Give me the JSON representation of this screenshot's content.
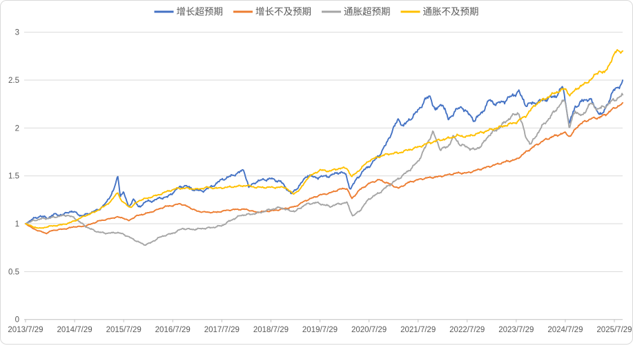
{
  "chart_data": {
    "type": "line",
    "title": "",
    "xlabel": "",
    "ylabel": "",
    "grid": "horizontal",
    "legend_position": "top-center",
    "background": "#FFFFFF",
    "frame_border_color": "#D9D9D9",
    "gridline_color": "#D9D9D9",
    "axis_line_color": "#BFBFBF",
    "tick_text_color": "#595959",
    "y_axis": {
      "min": 0,
      "max": 3,
      "step": 0.5,
      "tick_labels": [
        "0",
        "0.5",
        "1",
        "1.5",
        "2",
        "2.5",
        "3"
      ]
    },
    "x_axis": {
      "tick_labels": [
        "2013/7/29",
        "2014/7/29",
        "2015/7/29",
        "2016/7/29",
        "2017/7/29",
        "2018/7/29",
        "2019/7/29",
        "2020/7/29",
        "2021/7/29",
        "2022/7/29",
        "2023/7/29",
        "2024/7/29",
        "2025/7/29"
      ],
      "tick_positions_years": [
        0,
        1,
        2,
        3,
        4,
        5,
        6,
        7,
        8,
        9,
        10,
        11,
        12
      ],
      "data_span_years": 12.17
    },
    "series": [
      {
        "id": "growth-above-expectations",
        "name": "增长超预期",
        "color": "#4472C4",
        "noise_rel": 0.014,
        "seed": 11,
        "points": [
          [
            0,
            1.0
          ],
          [
            0.15,
            1.05
          ],
          [
            0.3,
            1.08
          ],
          [
            0.45,
            1.06
          ],
          [
            0.6,
            1.1
          ],
          [
            0.75,
            1.09
          ],
          [
            0.9,
            1.13
          ],
          [
            1.0,
            1.12
          ],
          [
            1.15,
            1.08
          ],
          [
            1.3,
            1.11
          ],
          [
            1.5,
            1.15
          ],
          [
            1.65,
            1.22
          ],
          [
            1.8,
            1.36
          ],
          [
            1.88,
            1.49
          ],
          [
            1.93,
            1.3
          ],
          [
            2.0,
            1.33
          ],
          [
            2.1,
            1.17
          ],
          [
            2.2,
            1.26
          ],
          [
            2.3,
            1.17
          ],
          [
            2.45,
            1.23
          ],
          [
            2.6,
            1.24
          ],
          [
            2.75,
            1.27
          ],
          [
            2.9,
            1.28
          ],
          [
            3.1,
            1.37
          ],
          [
            3.25,
            1.4
          ],
          [
            3.4,
            1.36
          ],
          [
            3.6,
            1.34
          ],
          [
            3.8,
            1.39
          ],
          [
            4.0,
            1.46
          ],
          [
            4.2,
            1.5
          ],
          [
            4.45,
            1.56
          ],
          [
            4.55,
            1.38
          ],
          [
            4.7,
            1.44
          ],
          [
            4.85,
            1.46
          ],
          [
            5.0,
            1.47
          ],
          [
            5.2,
            1.44
          ],
          [
            5.42,
            1.31
          ],
          [
            5.6,
            1.41
          ],
          [
            5.75,
            1.51
          ],
          [
            5.9,
            1.48
          ],
          [
            6.0,
            1.49
          ],
          [
            6.2,
            1.5
          ],
          [
            6.4,
            1.54
          ],
          [
            6.52,
            1.52
          ],
          [
            6.62,
            1.36
          ],
          [
            6.75,
            1.47
          ],
          [
            6.9,
            1.56
          ],
          [
            7.0,
            1.6
          ],
          [
            7.2,
            1.71
          ],
          [
            7.35,
            1.83
          ],
          [
            7.5,
            2.0
          ],
          [
            7.6,
            2.09
          ],
          [
            7.7,
            2.02
          ],
          [
            7.85,
            2.1
          ],
          [
            8.0,
            2.18
          ],
          [
            8.15,
            2.3
          ],
          [
            8.25,
            2.33
          ],
          [
            8.35,
            2.18
          ],
          [
            8.5,
            2.26
          ],
          [
            8.62,
            2.08
          ],
          [
            8.75,
            2.18
          ],
          [
            8.9,
            2.22
          ],
          [
            9.0,
            2.16
          ],
          [
            9.15,
            2.08
          ],
          [
            9.3,
            2.16
          ],
          [
            9.45,
            2.29
          ],
          [
            9.6,
            2.25
          ],
          [
            9.75,
            2.28
          ],
          [
            9.9,
            2.33
          ],
          [
            10.05,
            2.38
          ],
          [
            10.2,
            2.24
          ],
          [
            10.35,
            2.26
          ],
          [
            10.5,
            2.28
          ],
          [
            10.65,
            2.31
          ],
          [
            10.8,
            2.33
          ],
          [
            10.95,
            2.43
          ],
          [
            11.08,
            2.04
          ],
          [
            11.2,
            2.22
          ],
          [
            11.35,
            2.28
          ],
          [
            11.5,
            2.31
          ],
          [
            11.62,
            2.2
          ],
          [
            11.75,
            2.13
          ],
          [
            11.9,
            2.3
          ],
          [
            12.0,
            2.4
          ],
          [
            12.17,
            2.47
          ]
        ]
      },
      {
        "id": "growth-below-expectations",
        "name": "增长不及预期",
        "color": "#ED7D31",
        "noise_rel": 0.008,
        "seed": 22,
        "points": [
          [
            0,
            1.0
          ],
          [
            0.15,
            0.95
          ],
          [
            0.3,
            0.92
          ],
          [
            0.42,
            0.9
          ],
          [
            0.55,
            0.93
          ],
          [
            0.7,
            0.94
          ],
          [
            0.85,
            0.95
          ],
          [
            1.0,
            0.97
          ],
          [
            1.15,
            0.97
          ],
          [
            1.3,
            0.99
          ],
          [
            1.5,
            1.03
          ],
          [
            1.7,
            1.05
          ],
          [
            1.85,
            1.07
          ],
          [
            2.0,
            1.06
          ],
          [
            2.1,
            1.03
          ],
          [
            2.25,
            1.08
          ],
          [
            2.4,
            1.1
          ],
          [
            2.55,
            1.12
          ],
          [
            2.7,
            1.15
          ],
          [
            2.85,
            1.18
          ],
          [
            3.0,
            1.19
          ],
          [
            3.15,
            1.21
          ],
          [
            3.3,
            1.18
          ],
          [
            3.5,
            1.13
          ],
          [
            3.7,
            1.12
          ],
          [
            3.9,
            1.12
          ],
          [
            4.1,
            1.14
          ],
          [
            4.3,
            1.15
          ],
          [
            4.5,
            1.15
          ],
          [
            4.7,
            1.12
          ],
          [
            4.9,
            1.13
          ],
          [
            5.1,
            1.14
          ],
          [
            5.3,
            1.16
          ],
          [
            5.5,
            1.18
          ],
          [
            5.7,
            1.24
          ],
          [
            5.9,
            1.28
          ],
          [
            6.0,
            1.3
          ],
          [
            6.2,
            1.32
          ],
          [
            6.4,
            1.36
          ],
          [
            6.55,
            1.37
          ],
          [
            6.65,
            1.26
          ],
          [
            6.8,
            1.35
          ],
          [
            7.0,
            1.42
          ],
          [
            7.2,
            1.46
          ],
          [
            7.4,
            1.42
          ],
          [
            7.6,
            1.37
          ],
          [
            7.8,
            1.43
          ],
          [
            8.0,
            1.46
          ],
          [
            8.2,
            1.48
          ],
          [
            8.4,
            1.49
          ],
          [
            8.6,
            1.51
          ],
          [
            8.8,
            1.53
          ],
          [
            9.0,
            1.53
          ],
          [
            9.2,
            1.56
          ],
          [
            9.4,
            1.59
          ],
          [
            9.6,
            1.62
          ],
          [
            9.8,
            1.65
          ],
          [
            10.0,
            1.67
          ],
          [
            10.2,
            1.75
          ],
          [
            10.4,
            1.82
          ],
          [
            10.6,
            1.88
          ],
          [
            10.8,
            1.92
          ],
          [
            11.0,
            1.95
          ],
          [
            11.1,
            1.91
          ],
          [
            11.25,
            2.02
          ],
          [
            11.4,
            2.07
          ],
          [
            11.55,
            2.1
          ],
          [
            11.7,
            2.11
          ],
          [
            11.85,
            2.15
          ],
          [
            12.0,
            2.21
          ],
          [
            12.17,
            2.25
          ]
        ]
      },
      {
        "id": "inflation-above-expectations",
        "name": "通胀超预期",
        "color": "#A5A5A5",
        "noise_rel": 0.012,
        "seed": 33,
        "points": [
          [
            0,
            1.0
          ],
          [
            0.15,
            1.03
          ],
          [
            0.3,
            1.05
          ],
          [
            0.5,
            1.06
          ],
          [
            0.7,
            1.08
          ],
          [
            0.85,
            1.09
          ],
          [
            1.0,
            1.06
          ],
          [
            1.15,
            1.0
          ],
          [
            1.3,
            0.95
          ],
          [
            1.5,
            0.91
          ],
          [
            1.7,
            0.9
          ],
          [
            1.85,
            0.91
          ],
          [
            2.0,
            0.89
          ],
          [
            2.15,
            0.85
          ],
          [
            2.3,
            0.81
          ],
          [
            2.42,
            0.78
          ],
          [
            2.55,
            0.8
          ],
          [
            2.7,
            0.85
          ],
          [
            2.85,
            0.88
          ],
          [
            3.0,
            0.9
          ],
          [
            3.2,
            0.95
          ],
          [
            3.4,
            0.94
          ],
          [
            3.6,
            0.95
          ],
          [
            3.8,
            0.96
          ],
          [
            4.0,
            0.98
          ],
          [
            4.2,
            1.04
          ],
          [
            4.4,
            1.09
          ],
          [
            4.6,
            1.1
          ],
          [
            4.8,
            1.12
          ],
          [
            5.0,
            1.15
          ],
          [
            5.2,
            1.17
          ],
          [
            5.35,
            1.14
          ],
          [
            5.5,
            1.13
          ],
          [
            5.7,
            1.2
          ],
          [
            5.9,
            1.22
          ],
          [
            6.0,
            1.21
          ],
          [
            6.2,
            1.18
          ],
          [
            6.4,
            1.21
          ],
          [
            6.55,
            1.22
          ],
          [
            6.67,
            1.08
          ],
          [
            6.8,
            1.13
          ],
          [
            7.0,
            1.26
          ],
          [
            7.2,
            1.32
          ],
          [
            7.4,
            1.4
          ],
          [
            7.6,
            1.47
          ],
          [
            7.8,
            1.55
          ],
          [
            8.0,
            1.65
          ],
          [
            8.15,
            1.8
          ],
          [
            8.3,
            1.96
          ],
          [
            8.45,
            1.78
          ],
          [
            8.6,
            1.8
          ],
          [
            8.72,
            1.91
          ],
          [
            8.85,
            1.83
          ],
          [
            9.0,
            1.8
          ],
          [
            9.15,
            1.77
          ],
          [
            9.3,
            1.82
          ],
          [
            9.45,
            1.93
          ],
          [
            9.6,
            1.98
          ],
          [
            9.75,
            2.05
          ],
          [
            9.9,
            2.12
          ],
          [
            10.05,
            2.16
          ],
          [
            10.2,
            1.9
          ],
          [
            10.3,
            1.83
          ],
          [
            10.5,
            2.0
          ],
          [
            10.7,
            2.12
          ],
          [
            10.9,
            2.25
          ],
          [
            11.0,
            2.29
          ],
          [
            11.08,
            2.0
          ],
          [
            11.2,
            2.18
          ],
          [
            11.35,
            2.12
          ],
          [
            11.5,
            2.26
          ],
          [
            11.65,
            2.2
          ],
          [
            11.8,
            2.22
          ],
          [
            11.95,
            2.28
          ],
          [
            12.17,
            2.34
          ]
        ]
      },
      {
        "id": "inflation-below-expectations",
        "name": "通胀不及预期",
        "color": "#FFC000",
        "noise_rel": 0.009,
        "seed": 44,
        "points": [
          [
            0,
            1.0
          ],
          [
            0.15,
            0.97
          ],
          [
            0.3,
            0.95
          ],
          [
            0.45,
            0.97
          ],
          [
            0.6,
            0.98
          ],
          [
            0.75,
            0.99
          ],
          [
            0.9,
            1.01
          ],
          [
            1.0,
            1.03
          ],
          [
            1.2,
            1.08
          ],
          [
            1.4,
            1.12
          ],
          [
            1.6,
            1.18
          ],
          [
            1.75,
            1.24
          ],
          [
            1.88,
            1.33
          ],
          [
            1.95,
            1.24
          ],
          [
            2.05,
            1.2
          ],
          [
            2.15,
            1.17
          ],
          [
            2.3,
            1.24
          ],
          [
            2.5,
            1.27
          ],
          [
            2.7,
            1.3
          ],
          [
            2.9,
            1.34
          ],
          [
            3.1,
            1.37
          ],
          [
            3.3,
            1.37
          ],
          [
            3.5,
            1.36
          ],
          [
            3.7,
            1.38
          ],
          [
            3.9,
            1.37
          ],
          [
            4.1,
            1.38
          ],
          [
            4.3,
            1.39
          ],
          [
            4.5,
            1.4
          ],
          [
            4.7,
            1.38
          ],
          [
            4.9,
            1.38
          ],
          [
            5.1,
            1.38
          ],
          [
            5.3,
            1.38
          ],
          [
            5.45,
            1.31
          ],
          [
            5.6,
            1.36
          ],
          [
            5.75,
            1.48
          ],
          [
            5.9,
            1.53
          ],
          [
            6.0,
            1.56
          ],
          [
            6.2,
            1.55
          ],
          [
            6.4,
            1.58
          ],
          [
            6.55,
            1.58
          ],
          [
            6.65,
            1.49
          ],
          [
            6.8,
            1.56
          ],
          [
            7.0,
            1.66
          ],
          [
            7.2,
            1.7
          ],
          [
            7.4,
            1.73
          ],
          [
            7.6,
            1.74
          ],
          [
            7.8,
            1.77
          ],
          [
            8.0,
            1.8
          ],
          [
            8.2,
            1.84
          ],
          [
            8.4,
            1.87
          ],
          [
            8.6,
            1.89
          ],
          [
            8.8,
            1.92
          ],
          [
            9.0,
            1.91
          ],
          [
            9.2,
            1.94
          ],
          [
            9.4,
            1.97
          ],
          [
            9.6,
            2.0
          ],
          [
            9.8,
            2.03
          ],
          [
            10.0,
            2.06
          ],
          [
            10.2,
            2.13
          ],
          [
            10.4,
            2.25
          ],
          [
            10.6,
            2.31
          ],
          [
            10.8,
            2.37
          ],
          [
            11.0,
            2.41
          ],
          [
            11.1,
            2.34
          ],
          [
            11.25,
            2.42
          ],
          [
            11.4,
            2.46
          ],
          [
            11.55,
            2.52
          ],
          [
            11.7,
            2.6
          ],
          [
            11.8,
            2.57
          ],
          [
            11.95,
            2.72
          ],
          [
            12.05,
            2.81
          ],
          [
            12.17,
            2.8
          ]
        ]
      }
    ]
  }
}
